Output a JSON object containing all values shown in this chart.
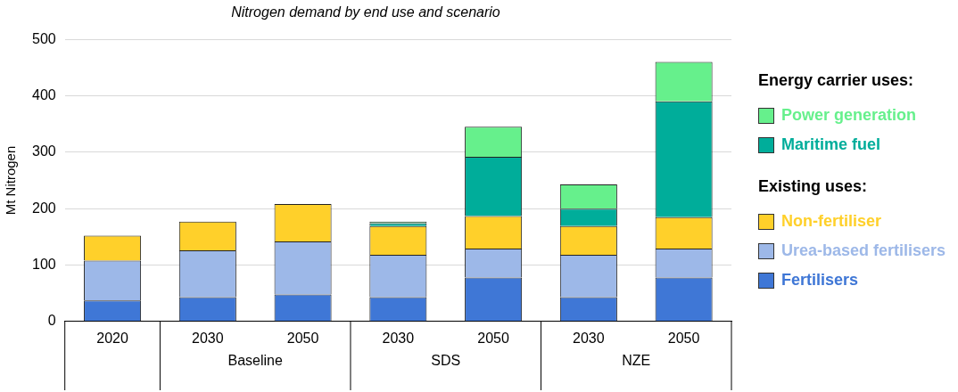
{
  "chart_data": {
    "type": "bar",
    "title": "Nitrogen demand by end use and scenario",
    "ylabel": "Mt Nitrogen",
    "categories": [
      "2020",
      "2030",
      "2050",
      "2030",
      "2050",
      "2030",
      "2050"
    ],
    "stacked": true,
    "grid": "y",
    "legend": "right",
    "ylim": [
      0,
      500
    ],
    "yticks": [
      0,
      100,
      200,
      300,
      400,
      500
    ],
    "annotations": [
      "Baseline",
      "SDS",
      "NZE",
      "Energy carrier uses:",
      "Existing uses:"
    ],
    "series": [
      {
        "name": "Fertilisers",
        "color": "#3f77d6",
        "values": [
          37,
          43,
          48,
          43,
          78,
          43,
          78
        ]
      },
      {
        "name": "Urea-based fertilisers",
        "color": "#9db8e8",
        "values": [
          71,
          83,
          94,
          75,
          51,
          75,
          51
        ]
      },
      {
        "name": "Non-fertiliser",
        "color": "#ffd02a",
        "values": [
          44,
          51,
          66,
          51,
          58,
          51,
          56
        ]
      },
      {
        "name": "Maritime fuel",
        "color": "#00ad9a",
        "values": [
          0,
          0,
          0,
          5,
          105,
          31,
          205
        ]
      },
      {
        "name": "Power generation",
        "color": "#66f08c",
        "values": [
          0,
          0,
          0,
          3,
          53,
          43,
          70
        ]
      }
    ]
  }
}
